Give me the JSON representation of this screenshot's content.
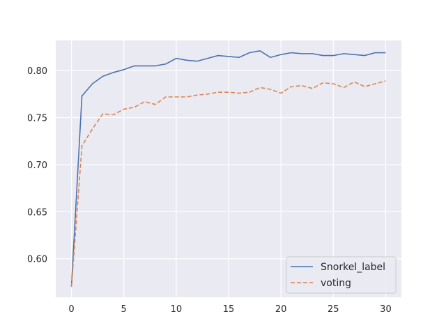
{
  "chart_data": {
    "type": "line",
    "title": "",
    "xlabel": "",
    "ylabel": "",
    "xlim": [
      -1.5,
      31.5
    ],
    "ylim": [
      0.559,
      0.832
    ],
    "xticks": [
      "0",
      "5",
      "10",
      "15",
      "20",
      "25",
      "30"
    ],
    "yticks": [
      "0.60",
      "0.65",
      "0.70",
      "0.75",
      "0.80"
    ],
    "grid": true,
    "legend_position": "lower-right",
    "x": [
      0,
      1,
      2,
      3,
      4,
      5,
      6,
      7,
      8,
      9,
      10,
      11,
      12,
      13,
      14,
      15,
      16,
      17,
      18,
      19,
      20,
      21,
      22,
      23,
      24,
      25,
      26,
      27,
      28,
      29,
      30
    ],
    "series": [
      {
        "name": "Snorkel_label",
        "color": "#4c72b0",
        "style": "solid",
        "values": [
          0.571,
          0.773,
          0.786,
          0.794,
          0.798,
          0.801,
          0.805,
          0.805,
          0.805,
          0.807,
          0.813,
          0.811,
          0.81,
          0.813,
          0.816,
          0.815,
          0.814,
          0.819,
          0.821,
          0.814,
          0.817,
          0.819,
          0.818,
          0.818,
          0.816,
          0.816,
          0.818,
          0.817,
          0.816,
          0.819,
          0.819
        ]
      },
      {
        "name": "voting",
        "color": "#dd8452",
        "style": "dashed",
        "values": [
          0.57,
          0.72,
          0.738,
          0.754,
          0.753,
          0.759,
          0.761,
          0.767,
          0.764,
          0.772,
          0.772,
          0.772,
          0.774,
          0.775,
          0.777,
          0.777,
          0.776,
          0.777,
          0.782,
          0.78,
          0.776,
          0.783,
          0.784,
          0.781,
          0.787,
          0.786,
          0.782,
          0.788,
          0.783,
          0.786,
          0.789
        ]
      }
    ],
    "colors": {
      "plot_background": "#eaeaf2",
      "grid": "#ffffff",
      "text": "#262626"
    }
  }
}
